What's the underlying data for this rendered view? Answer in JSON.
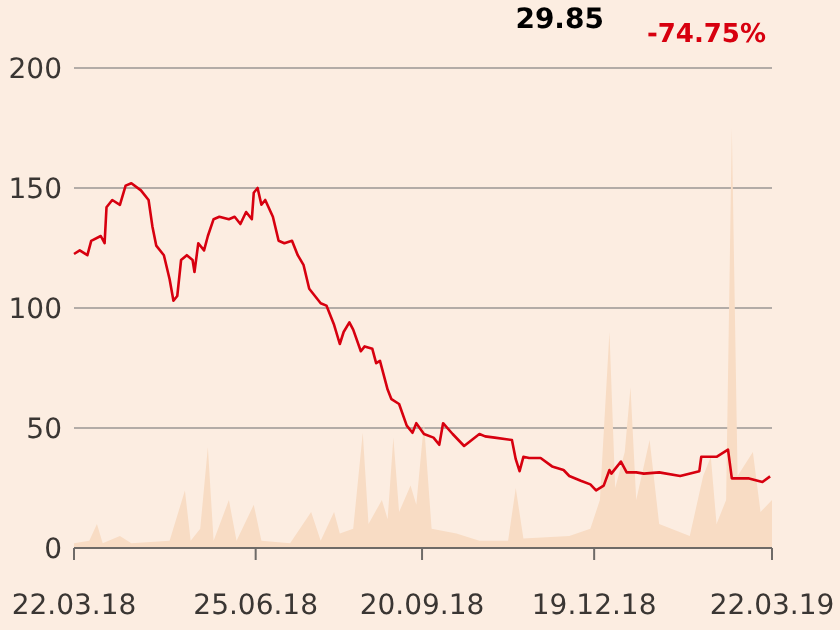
{
  "chart_data": {
    "type": "line",
    "annotations": [
      "29.85",
      "-74.75%"
    ],
    "xlim": [
      "2018-03-22",
      "2019-03-22"
    ],
    "xticks": [
      {
        "value": "2018-03-22",
        "label": "22.03.18"
      },
      {
        "value": "2018-06-25",
        "label": "25.06.18"
      },
      {
        "value": "2018-09-20",
        "label": "20.09.18"
      },
      {
        "value": "2018-12-19",
        "label": "19.12.18"
      },
      {
        "value": "2019-03-22",
        "label": "22.03.19"
      }
    ],
    "ylim": [
      0,
      200
    ],
    "yticks": [
      0,
      50,
      100,
      150,
      200
    ],
    "grid": "y",
    "series": [
      {
        "type": "area",
        "color": "#f8dcc4",
        "x": [
          "2018-03-22",
          "2018-03-30",
          "2018-04-03",
          "2018-04-06",
          "2018-04-15",
          "2018-04-21",
          "2018-05-11",
          "2018-05-19",
          "2018-05-22",
          "2018-05-27",
          "2018-05-31",
          "2018-06-03",
          "2018-06-11",
          "2018-06-15",
          "2018-06-24",
          "2018-06-28",
          "2018-07-13",
          "2018-07-24",
          "2018-07-29",
          "2018-08-05",
          "2018-08-08",
          "2018-08-15",
          "2018-08-20",
          "2018-08-23",
          "2018-08-30",
          "2018-09-02",
          "2018-09-05",
          "2018-09-08",
          "2018-09-14",
          "2018-09-17",
          "2018-09-21",
          "2018-09-25",
          "2018-10-08",
          "2018-10-20",
          "2018-11-04",
          "2018-11-08",
          "2018-11-12",
          "2018-12-06",
          "2018-12-17",
          "2018-12-22",
          "2018-12-27",
          "2018-12-30",
          "2019-01-04",
          "2019-01-07",
          "2019-01-10",
          "2019-01-17",
          "2019-01-22",
          "2019-02-07",
          "2019-02-14",
          "2019-02-18",
          "2019-02-21",
          "2019-02-26",
          "2019-03-01",
          "2019-03-04",
          "2019-03-12",
          "2019-03-16",
          "2019-03-22"
        ],
        "values": [
          2,
          3,
          10,
          2,
          5,
          2,
          3,
          24,
          3,
          8,
          42,
          3,
          20,
          3,
          18,
          3,
          2,
          15,
          3,
          15,
          6,
          8,
          48,
          10,
          20,
          12,
          46,
          15,
          26,
          18,
          52,
          8,
          6,
          3,
          3,
          25,
          4,
          5,
          8,
          20,
          90,
          25,
          40,
          67,
          20,
          45,
          10,
          5,
          30,
          38,
          10,
          20,
          175,
          30,
          40,
          15,
          20
        ]
      },
      {
        "color": "#d7000f",
        "x": [
          "2018-03-22",
          "2018-03-25",
          "2018-03-29",
          "2018-03-31",
          "2018-04-05",
          "2018-04-07",
          "2018-04-08",
          "2018-04-11",
          "2018-04-15",
          "2018-04-18",
          "2018-04-21",
          "2018-04-26",
          "2018-04-30",
          "2018-05-02",
          "2018-05-04",
          "2018-05-08",
          "2018-05-11",
          "2018-05-13",
          "2018-05-15",
          "2018-05-17",
          "2018-05-20",
          "2018-05-23",
          "2018-05-24",
          "2018-05-26",
          "2018-05-29",
          "2018-05-31",
          "2018-06-03",
          "2018-06-06",
          "2018-06-11",
          "2018-06-14",
          "2018-06-17",
          "2018-06-20",
          "2018-06-23",
          "2018-06-24",
          "2018-06-26",
          "2018-06-28",
          "2018-06-30",
          "2018-07-04",
          "2018-07-07",
          "2018-07-10",
          "2018-07-14",
          "2018-07-17",
          "2018-07-20",
          "2018-07-23",
          "2018-07-29",
          "2018-08-01",
          "2018-08-05",
          "2018-08-08",
          "2018-08-10",
          "2018-08-13",
          "2018-08-15",
          "2018-08-19",
          "2018-08-21",
          "2018-08-25",
          "2018-08-27",
          "2018-08-29",
          "2018-09-02",
          "2018-09-04",
          "2018-09-08",
          "2018-09-12",
          "2018-09-15",
          "2018-09-17",
          "2018-09-21",
          "2018-09-26",
          "2018-09-29",
          "2018-10-01",
          "2018-10-06",
          "2018-10-12",
          "2018-10-16",
          "2018-10-20",
          "2018-10-23",
          "2018-10-28",
          "2018-11-06",
          "2018-11-08",
          "2018-11-10",
          "2018-11-12",
          "2018-11-15",
          "2018-11-21",
          "2018-11-27",
          "2018-12-03",
          "2018-12-06",
          "2018-12-12",
          "2018-12-17",
          "2018-12-20",
          "2018-12-24",
          "2018-12-27",
          "2018-12-28",
          "2019-01-02",
          "2019-01-05",
          "2019-01-10",
          "2019-01-14",
          "2019-01-22",
          "2019-02-02",
          "2019-02-12",
          "2019-02-13",
          "2019-02-21",
          "2019-02-27",
          "2019-03-01",
          "2019-03-10",
          "2019-03-17",
          "2019-03-21"
        ],
        "values": [
          122.5,
          124,
          122,
          128,
          130,
          127,
          142,
          145,
          143,
          151,
          152,
          149,
          145,
          134,
          126,
          122,
          112,
          103,
          105,
          120,
          122,
          120,
          115,
          127,
          124,
          130,
          137,
          138,
          137,
          138,
          135,
          140,
          137,
          148,
          150,
          143,
          145,
          138,
          128,
          127,
          128,
          122,
          118,
          108,
          102,
          101,
          93,
          85,
          90,
          94,
          91,
          82,
          84,
          83,
          77,
          78,
          66,
          62,
          60,
          51,
          48,
          52,
          47.5,
          46,
          43,
          52,
          47.5,
          42.5,
          45,
          47.5,
          46.5,
          46,
          45,
          37,
          32,
          38,
          37.5,
          37.5,
          34,
          32.5,
          30,
          28,
          26.5,
          24,
          26,
          32.5,
          31,
          36,
          31.5,
          31.5,
          31,
          31.5,
          30,
          32,
          38,
          38,
          41,
          29,
          29,
          27.5,
          29.85
        ]
      }
    ]
  }
}
